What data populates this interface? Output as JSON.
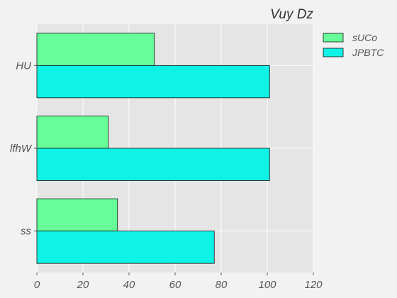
{
  "chart_data": {
    "type": "bar",
    "orientation": "horizontal",
    "title": "Vuy Dz",
    "xlabel": "",
    "ylabel": "",
    "categories": [
      "HU",
      "lfhW",
      "ss"
    ],
    "series": [
      {
        "name": "sUCo",
        "values": [
          51,
          31,
          35
        ],
        "color": "#66ff99"
      },
      {
        "name": "JPBTC",
        "values": [
          101,
          101,
          77
        ],
        "color": "#0ff2e6"
      }
    ],
    "xlim": [
      0,
      120
    ],
    "xticks": [
      "0",
      "20",
      "40",
      "60",
      "80",
      "100",
      "120"
    ],
    "grid": true,
    "legend_position": "top-right",
    "plot_background": "#e5e5e5",
    "grid_color": "#ffffff"
  }
}
